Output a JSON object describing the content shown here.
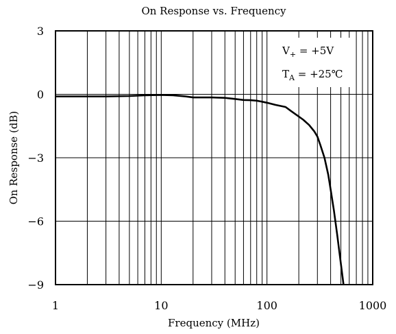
{
  "chart_data": {
    "type": "line",
    "title": "On Response vs. Frequency",
    "xlabel": "Frequency (MHz)",
    "ylabel": "On Response (dB)",
    "x_scale": "log",
    "xlim": [
      1,
      1000
    ],
    "ylim": [
      -9,
      3
    ],
    "x_ticks": [
      1,
      10,
      100,
      1000
    ],
    "x_tick_labels": [
      "1",
      "10",
      "100",
      "1000"
    ],
    "y_ticks": [
      3,
      0,
      -3,
      -6,
      -9
    ],
    "y_tick_labels": [
      "3",
      "0",
      "−3",
      "−6",
      "−9"
    ],
    "grid": true,
    "legend": "none",
    "annotations": {
      "line1_main": "V",
      "line1_sub": "+",
      "line1_rest": " = +5V",
      "line2_main": "T",
      "line2_sub": "A",
      "line2_rest": " = +25℃"
    },
    "series": [
      {
        "x": [
          1,
          2,
          3,
          5,
          7,
          10,
          13,
          17,
          20,
          25,
          30,
          40,
          50,
          60,
          70,
          80,
          90,
          100,
          120,
          150,
          170,
          200,
          220,
          250,
          280,
          300,
          320,
          350,
          380,
          400,
          430,
          460,
          500,
          530,
          550
        ],
        "y": [
          -0.1,
          -0.1,
          -0.1,
          -0.08,
          -0.05,
          -0.03,
          -0.05,
          -0.1,
          -0.15,
          -0.15,
          -0.15,
          -0.17,
          -0.22,
          -0.27,
          -0.28,
          -0.3,
          -0.35,
          -0.4,
          -0.5,
          -0.6,
          -0.8,
          -1.05,
          -1.2,
          -1.45,
          -1.75,
          -2.0,
          -2.4,
          -3.0,
          -3.8,
          -4.5,
          -5.5,
          -6.6,
          -8.0,
          -9.0,
          -9.6
        ],
        "color": "#000000"
      }
    ]
  }
}
